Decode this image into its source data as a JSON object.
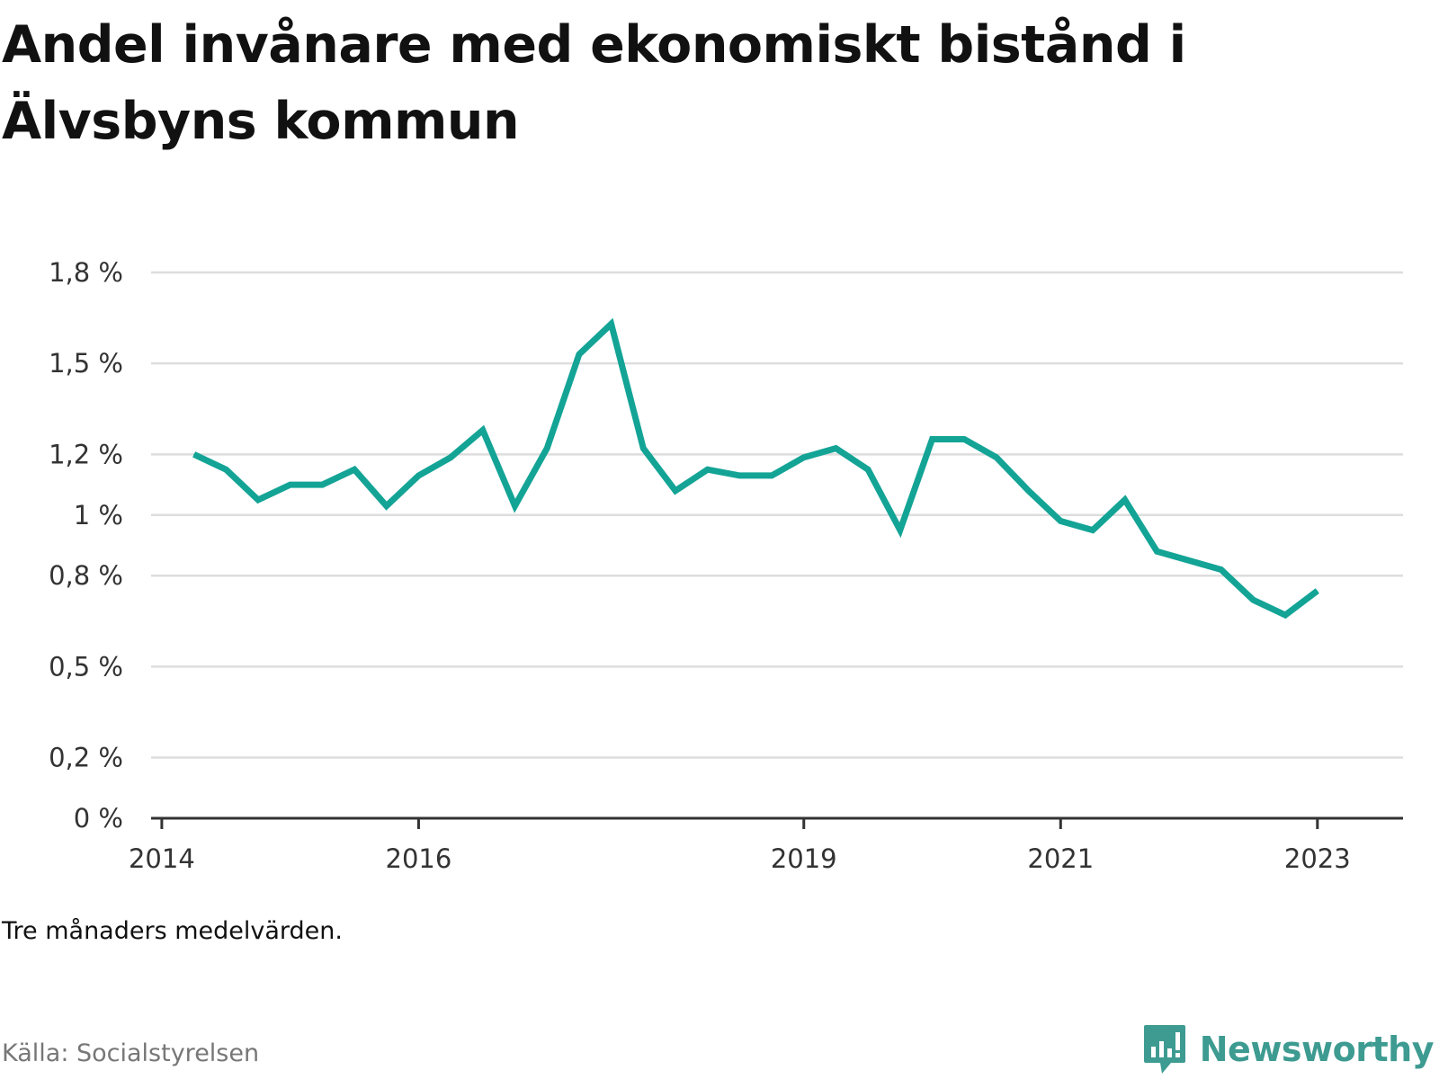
{
  "title": "Andel invånare med ekonomiskt bistånd i Älvsbyns kommun",
  "note": "Tre månaders medelvärden.",
  "source": "Källa: Socialstyrelsen",
  "brand": {
    "name": "Newsworthy",
    "icon": "newsworthy-logo-icon",
    "color": "#3d9b91"
  },
  "colors": {
    "line": "#13a496",
    "grid": "#dddddd",
    "axis": "#333333"
  },
  "chart_data": {
    "type": "line",
    "title": "Andel invånare med ekonomiskt bistånd i Älvsbyns kommun",
    "xlabel": "",
    "ylabel": "",
    "ylim": [
      0,
      1.8
    ],
    "xlim": [
      "2013-12",
      "2023-09"
    ],
    "y_ticks": [
      0,
      0.2,
      0.5,
      0.8,
      1.0,
      1.2,
      1.5,
      1.8
    ],
    "y_tick_labels": [
      "0 %",
      "0,2 %",
      "0,5 %",
      "0,8 %",
      "1 %",
      "1,2 %",
      "1,5 %",
      "1,8 %"
    ],
    "x_ticks": [
      "2014-01",
      "2016-01",
      "2019-01",
      "2021-01",
      "2023-01"
    ],
    "x_tick_labels": [
      "2014",
      "2016",
      "2019",
      "2021",
      "2023"
    ],
    "grid": true,
    "legend": "none",
    "series": [
      {
        "values": [
          {
            "x": "2014-04",
            "y": 1.2
          },
          {
            "x": "2014-07",
            "y": 1.15
          },
          {
            "x": "2014-10",
            "y": 1.05
          },
          {
            "x": "2015-01",
            "y": 1.1
          },
          {
            "x": "2015-04",
            "y": 1.1
          },
          {
            "x": "2015-07",
            "y": 1.15
          },
          {
            "x": "2015-10",
            "y": 1.03
          },
          {
            "x": "2016-01",
            "y": 1.13
          },
          {
            "x": "2016-04",
            "y": 1.19
          },
          {
            "x": "2016-07",
            "y": 1.28
          },
          {
            "x": "2016-10",
            "y": 1.03
          },
          {
            "x": "2017-01",
            "y": 1.22
          },
          {
            "x": "2017-04",
            "y": 1.53
          },
          {
            "x": "2017-07",
            "y": 1.63
          },
          {
            "x": "2017-10",
            "y": 1.22
          },
          {
            "x": "2018-01",
            "y": 1.08
          },
          {
            "x": "2018-04",
            "y": 1.15
          },
          {
            "x": "2018-07",
            "y": 1.13
          },
          {
            "x": "2018-10",
            "y": 1.13
          },
          {
            "x": "2019-01",
            "y": 1.19
          },
          {
            "x": "2019-04",
            "y": 1.22
          },
          {
            "x": "2019-07",
            "y": 1.15
          },
          {
            "x": "2019-10",
            "y": 0.95
          },
          {
            "x": "2020-01",
            "y": 1.25
          },
          {
            "x": "2020-04",
            "y": 1.25
          },
          {
            "x": "2020-07",
            "y": 1.19
          },
          {
            "x": "2020-10",
            "y": 1.08
          },
          {
            "x": "2021-01",
            "y": 0.98
          },
          {
            "x": "2021-04",
            "y": 0.95
          },
          {
            "x": "2021-07",
            "y": 1.05
          },
          {
            "x": "2021-10",
            "y": 0.88
          },
          {
            "x": "2022-01",
            "y": 0.85
          },
          {
            "x": "2022-04",
            "y": 0.82
          },
          {
            "x": "2022-07",
            "y": 0.72
          },
          {
            "x": "2022-10",
            "y": 0.67
          },
          {
            "x": "2023-01",
            "y": 0.75
          }
        ]
      }
    ]
  }
}
